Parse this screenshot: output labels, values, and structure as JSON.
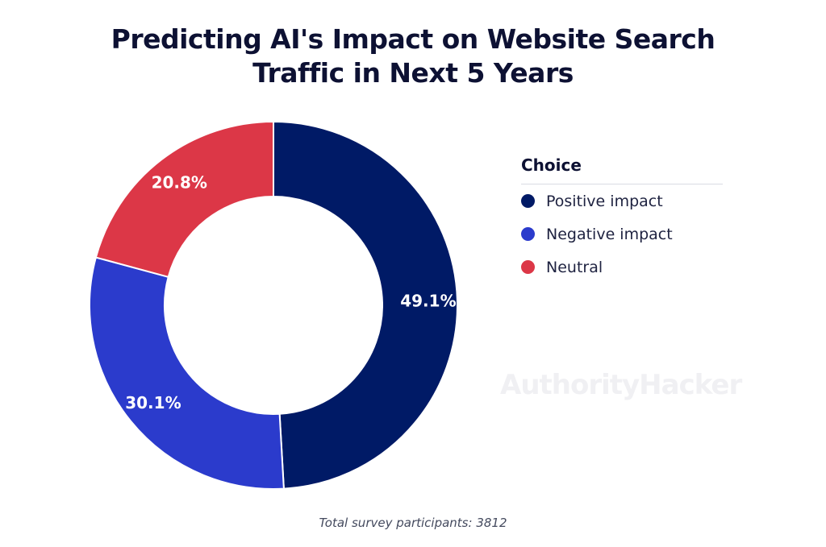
{
  "title_lines": [
    "Predicting AI's Impact on Website Search",
    "Traffic in Next 5 Years"
  ],
  "legend": {
    "title": "Choice",
    "items": [
      {
        "label": "Positive impact",
        "color": "#001a66"
      },
      {
        "label": "Negative impact",
        "color": "#2b3bcc"
      },
      {
        "label": "Neutral",
        "color": "#dc3747"
      }
    ]
  },
  "watermark": "AuthorityHacker",
  "footnote": "Total survey participants: 3812",
  "chart_data": {
    "type": "pie",
    "donut": true,
    "title": "Predicting AI's Impact on Website Search Traffic in Next 5 Years",
    "legend_title": "Choice",
    "legend_position": "right",
    "slices": [
      {
        "label": "Positive impact",
        "value": 49.1,
        "display": "49.1%",
        "color": "#001a66"
      },
      {
        "label": "Negative impact",
        "value": 30.1,
        "display": "30.1%",
        "color": "#2b3bcc"
      },
      {
        "label": "Neutral",
        "value": 20.8,
        "display": "20.8%",
        "color": "#dc3747"
      }
    ]
  }
}
